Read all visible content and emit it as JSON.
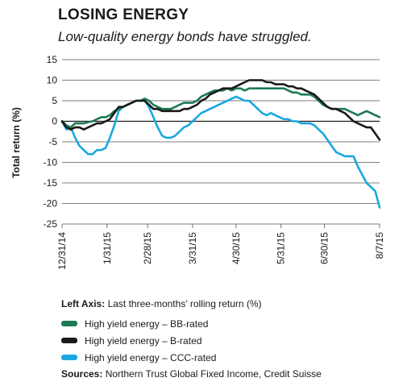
{
  "header": {
    "title": "LOSING ENERGY",
    "subtitle": "Low-quality energy bonds have struggled."
  },
  "chart_data": {
    "type": "line",
    "ylabel": "Total return (%)",
    "ylim": [
      -25,
      15
    ],
    "yticks": [
      15,
      10,
      5,
      0,
      -5,
      -10,
      -15,
      -20,
      -25
    ],
    "yticklabels": [
      "15",
      "10",
      "5",
      "0",
      "-5",
      "-10",
      "-15",
      "-20",
      "-25"
    ],
    "xticks": [
      "12/31/14",
      "1/31/15",
      "2/28/15",
      "3/31/15",
      "4/30/15",
      "5/31/15",
      "6/30/15",
      "8/7/15"
    ],
    "xtick_day": [
      0,
      31,
      59,
      90,
      120,
      151,
      181,
      219
    ],
    "grid": "horizontal",
    "series": [
      {
        "name": "High yield energy – BB-rated",
        "color": "#1d7a52",
        "points": [
          [
            0,
            0
          ],
          [
            3,
            -1
          ],
          [
            6,
            -1.5
          ],
          [
            9,
            -0.5
          ],
          [
            12,
            -0.5
          ],
          [
            15,
            -0.5
          ],
          [
            18,
            -0.2
          ],
          [
            21,
            0
          ],
          [
            24,
            0.5
          ],
          [
            27,
            1
          ],
          [
            30,
            1
          ],
          [
            33,
            1.5
          ],
          [
            36,
            2.5
          ],
          [
            39,
            3
          ],
          [
            42,
            3.5
          ],
          [
            45,
            4
          ],
          [
            48,
            4.5
          ],
          [
            51,
            5
          ],
          [
            54,
            5
          ],
          [
            57,
            5.5
          ],
          [
            60,
            5
          ],
          [
            63,
            4
          ],
          [
            66,
            3.5
          ],
          [
            69,
            3
          ],
          [
            72,
            3
          ],
          [
            75,
            3
          ],
          [
            78,
            3.5
          ],
          [
            81,
            4
          ],
          [
            84,
            4.5
          ],
          [
            87,
            4.5
          ],
          [
            90,
            4.5
          ],
          [
            93,
            5
          ],
          [
            96,
            6
          ],
          [
            99,
            6.5
          ],
          [
            102,
            7
          ],
          [
            105,
            7.5
          ],
          [
            108,
            7.5
          ],
          [
            111,
            7.5
          ],
          [
            114,
            8
          ],
          [
            117,
            7.5
          ],
          [
            120,
            8
          ],
          [
            123,
            8
          ],
          [
            126,
            7.5
          ],
          [
            129,
            8
          ],
          [
            132,
            8
          ],
          [
            135,
            8
          ],
          [
            138,
            8
          ],
          [
            141,
            8
          ],
          [
            144,
            8
          ],
          [
            147,
            8
          ],
          [
            150,
            8
          ],
          [
            153,
            8
          ],
          [
            156,
            7.5
          ],
          [
            159,
            7
          ],
          [
            162,
            7
          ],
          [
            165,
            6.5
          ],
          [
            168,
            6.5
          ],
          [
            171,
            6.5
          ],
          [
            174,
            6
          ],
          [
            177,
            5
          ],
          [
            180,
            4
          ],
          [
            183,
            3.5
          ],
          [
            186,
            3
          ],
          [
            189,
            3
          ],
          [
            192,
            3
          ],
          [
            195,
            3
          ],
          [
            198,
            2.5
          ],
          [
            201,
            2
          ],
          [
            204,
            1.5
          ],
          [
            207,
            2
          ],
          [
            210,
            2.5
          ],
          [
            213,
            2
          ],
          [
            216,
            1.5
          ],
          [
            219,
            1
          ]
        ]
      },
      {
        "name": "High yield energy – B-rated",
        "color": "#1a1a1a",
        "points": [
          [
            0,
            0
          ],
          [
            3,
            -1.5
          ],
          [
            6,
            -2
          ],
          [
            9,
            -1.5
          ],
          [
            12,
            -1.5
          ],
          [
            15,
            -2
          ],
          [
            18,
            -1.5
          ],
          [
            21,
            -1
          ],
          [
            24,
            -0.5
          ],
          [
            27,
            -0.5
          ],
          [
            30,
            0
          ],
          [
            33,
            0.5
          ],
          [
            36,
            2
          ],
          [
            39,
            3.5
          ],
          [
            42,
            3.5
          ],
          [
            45,
            4
          ],
          [
            48,
            4.5
          ],
          [
            51,
            5
          ],
          [
            54,
            5
          ],
          [
            57,
            5
          ],
          [
            60,
            4
          ],
          [
            63,
            3
          ],
          [
            66,
            3
          ],
          [
            69,
            2.5
          ],
          [
            72,
            2.5
          ],
          [
            75,
            2.5
          ],
          [
            78,
            2.5
          ],
          [
            81,
            2.5
          ],
          [
            84,
            3
          ],
          [
            87,
            3
          ],
          [
            90,
            3.5
          ],
          [
            93,
            4
          ],
          [
            96,
            5
          ],
          [
            99,
            5.5
          ],
          [
            102,
            6.5
          ],
          [
            105,
            7
          ],
          [
            108,
            7.5
          ],
          [
            111,
            8
          ],
          [
            114,
            8
          ],
          [
            117,
            8
          ],
          [
            120,
            8.5
          ],
          [
            123,
            9
          ],
          [
            126,
            9.5
          ],
          [
            129,
            10
          ],
          [
            132,
            10
          ],
          [
            135,
            10
          ],
          [
            138,
            10
          ],
          [
            141,
            9.5
          ],
          [
            144,
            9.5
          ],
          [
            147,
            9
          ],
          [
            150,
            9
          ],
          [
            153,
            9
          ],
          [
            156,
            8.5
          ],
          [
            159,
            8.5
          ],
          [
            162,
            8
          ],
          [
            165,
            8
          ],
          [
            168,
            7.5
          ],
          [
            171,
            7
          ],
          [
            174,
            6.5
          ],
          [
            177,
            5.5
          ],
          [
            180,
            4.5
          ],
          [
            183,
            3.5
          ],
          [
            186,
            3
          ],
          [
            189,
            3
          ],
          [
            192,
            2.5
          ],
          [
            195,
            2
          ],
          [
            198,
            1
          ],
          [
            201,
            0
          ],
          [
            204,
            -0.5
          ],
          [
            207,
            -1
          ],
          [
            210,
            -1.5
          ],
          [
            213,
            -1.5
          ],
          [
            216,
            -3
          ],
          [
            219,
            -4.5
          ]
        ]
      },
      {
        "name": "High yield energy – CCC-rated",
        "color": "#1aa7e0",
        "points": [
          [
            0,
            0
          ],
          [
            3,
            -2
          ],
          [
            6,
            -1.5
          ],
          [
            9,
            -4
          ],
          [
            12,
            -6
          ],
          [
            15,
            -7
          ],
          [
            18,
            -8
          ],
          [
            21,
            -8
          ],
          [
            24,
            -7
          ],
          [
            27,
            -7
          ],
          [
            30,
            -6.5
          ],
          [
            33,
            -4
          ],
          [
            36,
            -1
          ],
          [
            39,
            2.5
          ],
          [
            42,
            3.5
          ],
          [
            45,
            4
          ],
          [
            48,
            4.5
          ],
          [
            51,
            5
          ],
          [
            54,
            5
          ],
          [
            57,
            5
          ],
          [
            60,
            3.5
          ],
          [
            63,
            1
          ],
          [
            66,
            -1.5
          ],
          [
            69,
            -3.5
          ],
          [
            72,
            -4
          ],
          [
            75,
            -4
          ],
          [
            78,
            -3.5
          ],
          [
            81,
            -2.5
          ],
          [
            84,
            -1.5
          ],
          [
            87,
            -1
          ],
          [
            90,
            0
          ],
          [
            93,
            1
          ],
          [
            96,
            2
          ],
          [
            99,
            2.5
          ],
          [
            102,
            3
          ],
          [
            105,
            3.5
          ],
          [
            108,
            4
          ],
          [
            111,
            4.5
          ],
          [
            114,
            5
          ],
          [
            117,
            5.5
          ],
          [
            120,
            6
          ],
          [
            123,
            5.5
          ],
          [
            126,
            5
          ],
          [
            129,
            5
          ],
          [
            132,
            4
          ],
          [
            135,
            3
          ],
          [
            138,
            2
          ],
          [
            141,
            1.5
          ],
          [
            144,
            2
          ],
          [
            147,
            1.5
          ],
          [
            150,
            1
          ],
          [
            153,
            0.5
          ],
          [
            156,
            0.5
          ],
          [
            159,
            0
          ],
          [
            162,
            0
          ],
          [
            165,
            -0.5
          ],
          [
            168,
            -0.5
          ],
          [
            171,
            -0.5
          ],
          [
            174,
            -1
          ],
          [
            177,
            -2
          ],
          [
            180,
            -3
          ],
          [
            183,
            -4.5
          ],
          [
            186,
            -6
          ],
          [
            189,
            -7.5
          ],
          [
            192,
            -8
          ],
          [
            195,
            -8.5
          ],
          [
            198,
            -8.5
          ],
          [
            201,
            -8.5
          ],
          [
            204,
            -11
          ],
          [
            207,
            -13
          ],
          [
            210,
            -15
          ],
          [
            213,
            -16
          ],
          [
            216,
            -17
          ],
          [
            219,
            -21
          ]
        ]
      }
    ]
  },
  "left_axis_note": {
    "label": "Left Axis:",
    "text": "Last three-months’ rolling return (%)"
  },
  "legend": {
    "items": [
      {
        "label": "High yield energy – BB-rated",
        "color": "#1d7a52"
      },
      {
        "label": "High yield energy – B-rated",
        "color": "#1a1a1a"
      },
      {
        "label": "High yield energy – CCC-rated",
        "color": "#1aa7e0"
      }
    ]
  },
  "sources": {
    "label": "Sources:",
    "text": "Northern Trust Global Fixed Income, Credit Suisse"
  }
}
